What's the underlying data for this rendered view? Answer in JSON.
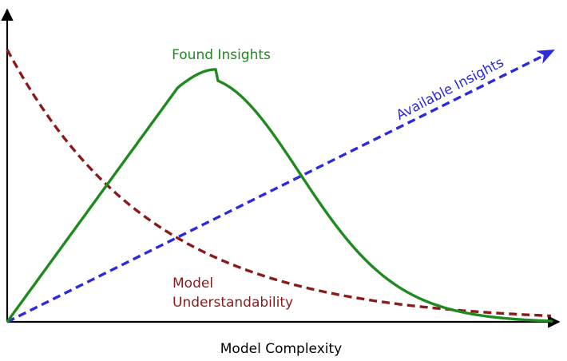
{
  "chart_data": {
    "type": "line",
    "title": "",
    "xlabel": "Model Complexity",
    "ylabel": "",
    "series": [
      {
        "name": "Found Insights",
        "color": "#1f8a1f",
        "style": "solid"
      },
      {
        "name": "Available Insights",
        "color": "#2b2bdb",
        "style": "dashed",
        "arrow": true
      },
      {
        "name": "Model Understandability",
        "label_lines": [
          "Model",
          "Understandability"
        ],
        "color": "#8b1a1a",
        "style": "dashed"
      }
    ],
    "grid": false,
    "legend": "none"
  },
  "colors": {
    "axis": "#000000",
    "found": "#1f8a1f",
    "available": "#2b2bdb",
    "understandability": "#8b1a1a"
  }
}
